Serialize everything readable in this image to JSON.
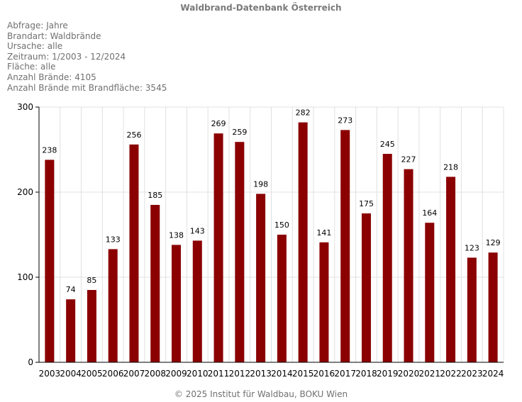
{
  "header": {
    "title": "Waldbrand-Datenbank Österreich"
  },
  "query": [
    "Abfrage: Jahre",
    "Brandart: Waldbrände",
    "Ursache: alle",
    "Zeitraum: 1/2003 - 12/2024",
    "Fläche: alle",
    "Anzahl Brände: 4105",
    "Anzahl Brände mit Brandfläche: 3545"
  ],
  "footer": {
    "copyright": "© 2025 Institut für Waldbau, BOKU Wien"
  },
  "colors": {
    "bar": "#8b0000",
    "grid": "#e0e0e0",
    "axis": "#000000"
  },
  "chart_data": {
    "type": "bar",
    "title": "Waldbrand-Datenbank Österreich",
    "xlabel": "",
    "ylabel": "",
    "ylim": [
      0,
      300
    ],
    "yticks": [
      0,
      100,
      200,
      300
    ],
    "grid": true,
    "categories": [
      "2003",
      "2004",
      "2005",
      "2006",
      "2007",
      "2008",
      "2009",
      "2010",
      "2011",
      "2012",
      "2013",
      "2014",
      "2015",
      "2016",
      "2017",
      "2018",
      "2019",
      "2020",
      "2021",
      "2022",
      "2023",
      "2024"
    ],
    "values": [
      238,
      74,
      85,
      133,
      256,
      185,
      138,
      143,
      269,
      259,
      198,
      150,
      282,
      141,
      273,
      175,
      245,
      227,
      164,
      218,
      123,
      129
    ]
  }
}
